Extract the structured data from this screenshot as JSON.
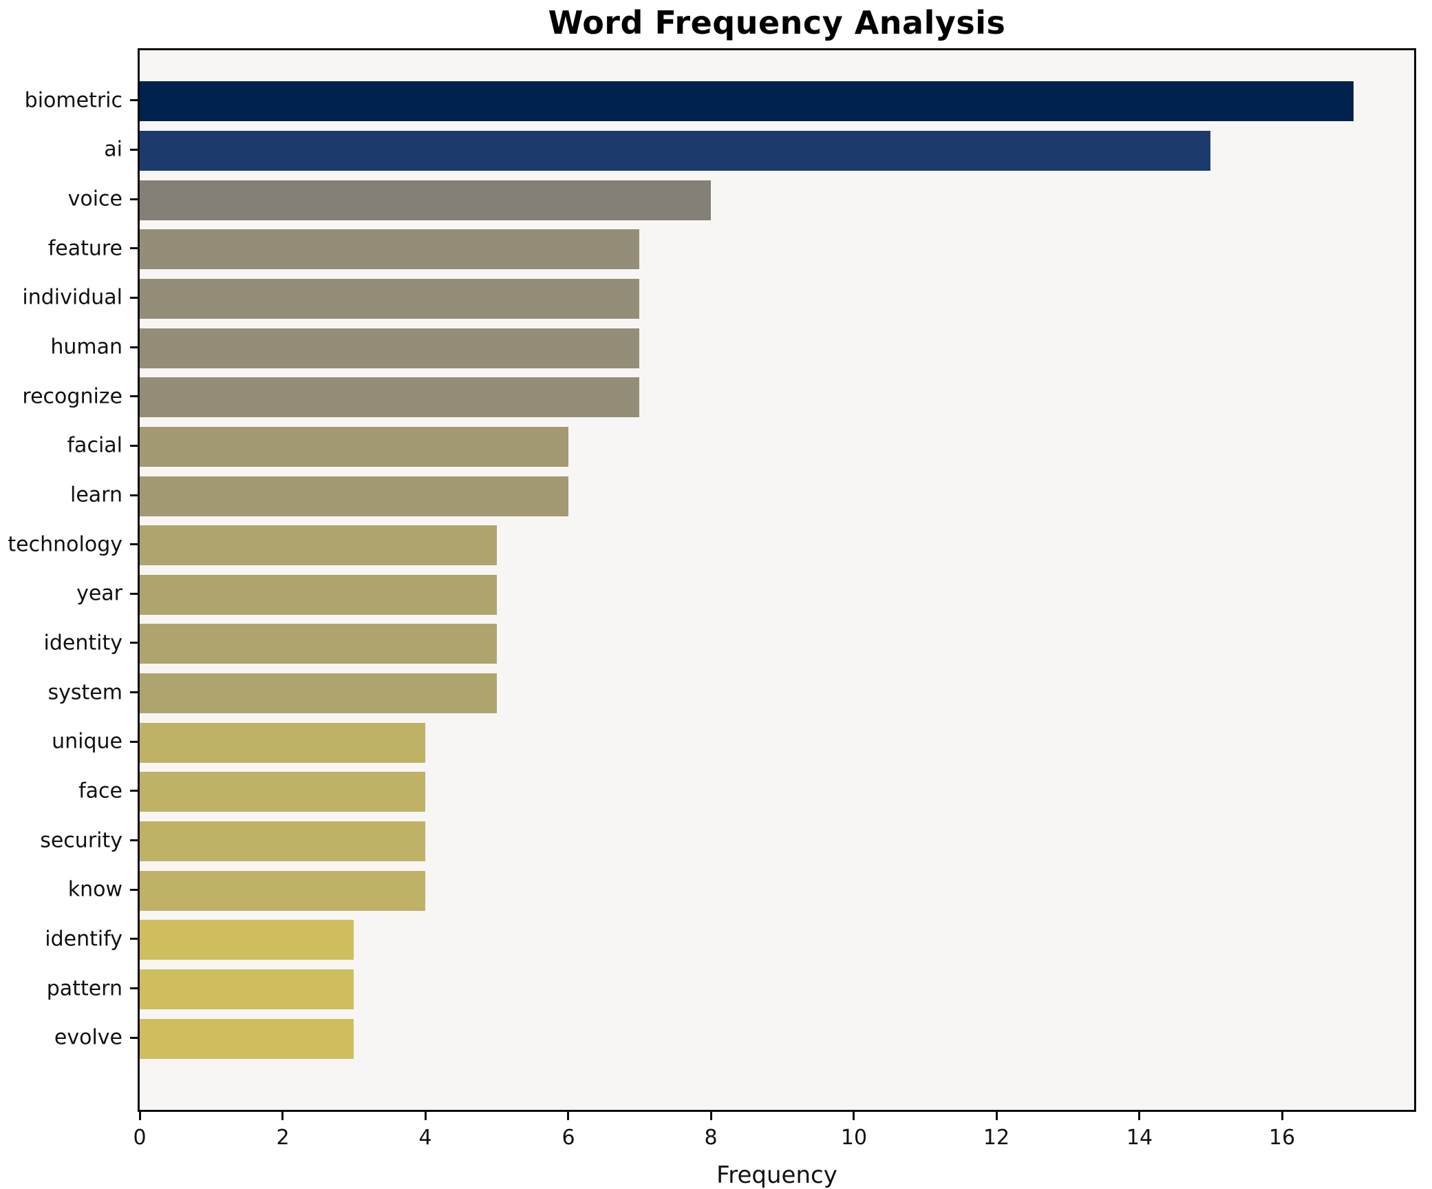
{
  "chart_data": {
    "type": "bar",
    "orientation": "horizontal",
    "title": "Word Frequency Analysis",
    "xlabel": "Frequency",
    "ylabel": "",
    "categories": [
      "biometric",
      "ai",
      "voice",
      "feature",
      "individual",
      "human",
      "recognize",
      "facial",
      "learn",
      "technology",
      "year",
      "identity",
      "system",
      "unique",
      "face",
      "security",
      "know",
      "identify",
      "pattern",
      "evolve"
    ],
    "values": [
      17,
      15,
      8,
      7,
      7,
      7,
      7,
      6,
      6,
      5,
      5,
      5,
      5,
      4,
      4,
      4,
      4,
      3,
      3,
      3
    ],
    "bar_colors": [
      "#00224c",
      "#1d3a6d",
      "#858077",
      "#948e79",
      "#948e79",
      "#948e79",
      "#948e79",
      "#a39a74",
      "#a39a74",
      "#aea56e",
      "#aea56e",
      "#aea56e",
      "#aea56e",
      "#bfb166",
      "#bfb166",
      "#bfb166",
      "#bfb166",
      "#cfbe5e",
      "#cfbe5e",
      "#cfbe5e"
    ],
    "xlim": [
      0,
      17.85
    ],
    "xticks": [
      0,
      2,
      4,
      6,
      8,
      10,
      12,
      14,
      16
    ],
    "grid": false,
    "legend": "none",
    "plot_background": "#f7f6f4",
    "frame_color": "#0c0c0c",
    "text_color": "#111111"
  }
}
